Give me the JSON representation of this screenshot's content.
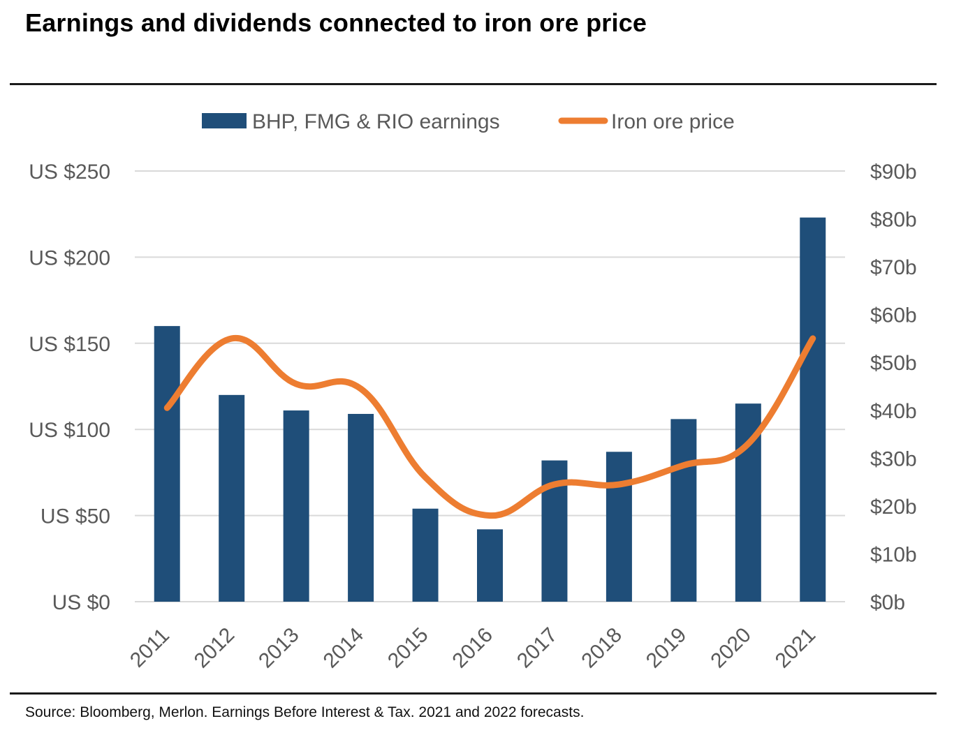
{
  "title": "Earnings and dividends connected to iron ore price",
  "source": "Source: Bloomberg, Merlon. Earnings Before Interest & Tax. 2021 and 2022 forecasts.",
  "colors": {
    "bars": "#1f4e79",
    "line": "#ed7d31",
    "grid": "#d9d9d9",
    "tick_text": "#595959"
  },
  "chart_data": {
    "type": "bar",
    "categories": [
      "2011",
      "2012",
      "2013",
      "2014",
      "2015",
      "2016",
      "2017",
      "2018",
      "2019",
      "2020",
      "2021"
    ],
    "series": [
      {
        "name": "BHP, FMG & RIO earnings",
        "type": "bar",
        "axis": "left",
        "values": [
          160,
          120,
          111,
          109,
          54,
          42,
          82,
          87,
          106,
          115,
          223
        ]
      },
      {
        "name": "Iron ore price",
        "type": "line",
        "axis": "right",
        "smooth": true,
        "values": [
          40.5,
          55,
          45.5,
          44.5,
          26,
          18,
          24.5,
          24.5,
          28.5,
          33,
          55
        ]
      }
    ],
    "left_axis": {
      "ticks": [
        "US $0",
        "US $50",
        "US $100",
        "US $150",
        "US $200",
        "US $250"
      ],
      "ylim": [
        0,
        250
      ]
    },
    "right_axis": {
      "ticks": [
        "$0b",
        "$10b",
        "$20b",
        "$30b",
        "$40b",
        "$50b",
        "$60b",
        "$70b",
        "$80b",
        "$90b"
      ],
      "ylim": [
        0,
        90
      ]
    },
    "grid": true,
    "legend_position": "top"
  }
}
